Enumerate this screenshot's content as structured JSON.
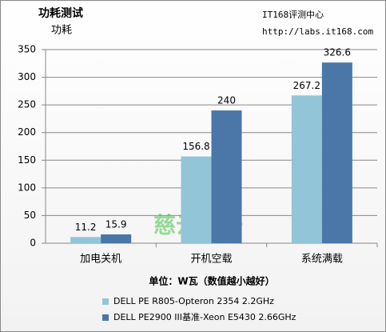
{
  "chart_data": {
    "type": "bar",
    "title": "功耗测试",
    "subtitle": "功耗",
    "annotations": [
      "IT168评测中心",
      "http://labs.it168.com",
      "慈云数据"
    ],
    "x_label": "单位：W瓦（数值越小越好）",
    "categories": [
      "加电关机",
      "开机空载",
      "系统满载"
    ],
    "series": [
      {
        "name": "DELL PE R805-Opteron 2354 2.2GHz",
        "color": "#92c5d8",
        "values": [
          11.2,
          156.8,
          267.2
        ]
      },
      {
        "name": "DELL PE2900 III基准-Xeon  E5430 2.66GHz",
        "color": "#4a76a8",
        "values": [
          15.9,
          240,
          326.6
        ]
      }
    ],
    "ylim": [
      0,
      350
    ],
    "yticks": [
      0,
      50,
      100,
      150,
      200,
      250,
      300,
      350
    ],
    "grid": true,
    "legend": "bottom"
  }
}
